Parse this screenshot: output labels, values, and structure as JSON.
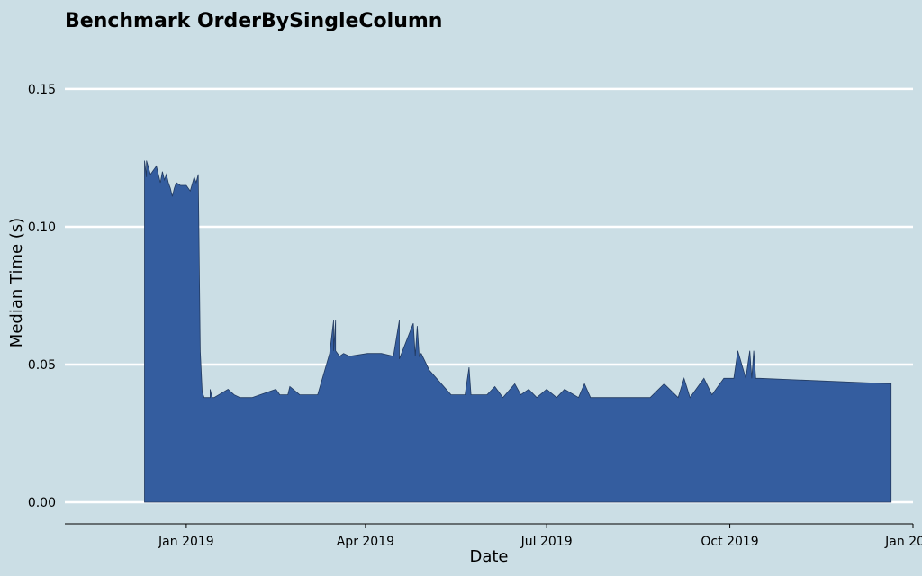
{
  "chart_data": {
    "type": "area",
    "title": "Benchmark OrderBySingleColumn",
    "xlabel": "Date",
    "ylabel": "Median Time (s)",
    "xlim": [
      "2018-11-01",
      "2020-01-01"
    ],
    "ylim": [
      0,
      0.165
    ],
    "y_ticks": [
      0,
      0.05,
      0.1,
      0.15
    ],
    "y_tick_labels": [
      "0.00",
      "0.05",
      "0.10",
      "0.15"
    ],
    "x_ticks": [
      "2019-01-01",
      "2019-04-01",
      "2019-07-01",
      "2019-10-01",
      "2020-01-01"
    ],
    "x_tick_labels": [
      "Jan 2019",
      "Apr 2019",
      "Jul 2019",
      "Oct 2019",
      "Jan 2020"
    ],
    "grid": "horizontal",
    "legend": "none",
    "fill_color": "#345d9f",
    "outline_color": "#223a60",
    "background": "#cbdee5",
    "series": [
      {
        "x": [
          "2018-12-11",
          "2018-12-11",
          "2018-12-12",
          "2018-12-12",
          "2018-12-14",
          "2018-12-15",
          "2018-12-17",
          "2018-12-19",
          "2018-12-20",
          "2018-12-21",
          "2018-12-22",
          "2018-12-23",
          "2018-12-24",
          "2018-12-25",
          "2018-12-26",
          "2018-12-27",
          "2018-12-29",
          "2019-01-01",
          "2019-01-03",
          "2019-01-05",
          "2019-01-06",
          "2019-01-07",
          "2019-01-08",
          "2019-01-09",
          "2019-01-10",
          "2019-01-11",
          "2019-01-13",
          "2019-01-13",
          "2019-01-14",
          "2019-01-14",
          "2019-01-15",
          "2019-01-22",
          "2019-01-25",
          "2019-01-28",
          "2019-02-03",
          "2019-02-15",
          "2019-02-17",
          "2019-02-21",
          "2019-02-22",
          "2019-02-27",
          "2019-03-08",
          "2019-03-14",
          "2019-03-16",
          "2019-03-16",
          "2019-03-17",
          "2019-03-17",
          "2019-03-19",
          "2019-03-21",
          "2019-03-24",
          "2019-04-02",
          "2019-04-09",
          "2019-04-15",
          "2019-04-18",
          "2019-04-18",
          "2019-04-25",
          "2019-04-26",
          "2019-04-27",
          "2019-04-28",
          "2019-04-29",
          "2019-05-03",
          "2019-05-14",
          "2019-05-21",
          "2019-05-23",
          "2019-05-24",
          "2019-05-25",
          "2019-06-01",
          "2019-06-05",
          "2019-06-09",
          "2019-06-15",
          "2019-06-18",
          "2019-06-22",
          "2019-06-26",
          "2019-07-01",
          "2019-07-06",
          "2019-07-10",
          "2019-07-17",
          "2019-07-20",
          "2019-07-23",
          "2019-07-25",
          "2019-08-15",
          "2019-08-22",
          "2019-08-29",
          "2019-09-05",
          "2019-09-08",
          "2019-09-11",
          "2019-09-18",
          "2019-09-22",
          "2019-09-28",
          "2019-10-01",
          "2019-10-03",
          "2019-10-05",
          "2019-10-09",
          "2019-10-11",
          "2019-10-12",
          "2019-10-13",
          "2019-10-14",
          "2019-10-15",
          "2019-10-16",
          "2019-12-21"
        ],
        "y": [
          0.114,
          0.124,
          0.118,
          0.124,
          0.119,
          0.12,
          0.122,
          0.116,
          0.12,
          0.117,
          0.119,
          0.116,
          0.114,
          0.111,
          0.114,
          0.116,
          0.115,
          0.115,
          0.113,
          0.118,
          0.116,
          0.119,
          0.055,
          0.04,
          0.038,
          0.038,
          0.038,
          0.041,
          0.038,
          0.038,
          0.038,
          0.041,
          0.039,
          0.038,
          0.038,
          0.041,
          0.039,
          0.039,
          0.042,
          0.039,
          0.039,
          0.054,
          0.066,
          0.055,
          0.066,
          0.055,
          0.053,
          0.054,
          0.053,
          0.054,
          0.054,
          0.053,
          0.066,
          0.052,
          0.065,
          0.053,
          0.064,
          0.053,
          0.054,
          0.048,
          0.039,
          0.039,
          0.049,
          0.039,
          0.039,
          0.039,
          0.042,
          0.038,
          0.043,
          0.039,
          0.041,
          0.038,
          0.041,
          0.038,
          0.041,
          0.038,
          0.043,
          0.038,
          0.038,
          0.038,
          0.038,
          0.043,
          0.038,
          0.045,
          0.038,
          0.045,
          0.039,
          0.045,
          0.045,
          0.045,
          0.055,
          0.045,
          0.055,
          0.045,
          0.055,
          0.045,
          0.045,
          0.045,
          0.043
        ]
      }
    ]
  }
}
